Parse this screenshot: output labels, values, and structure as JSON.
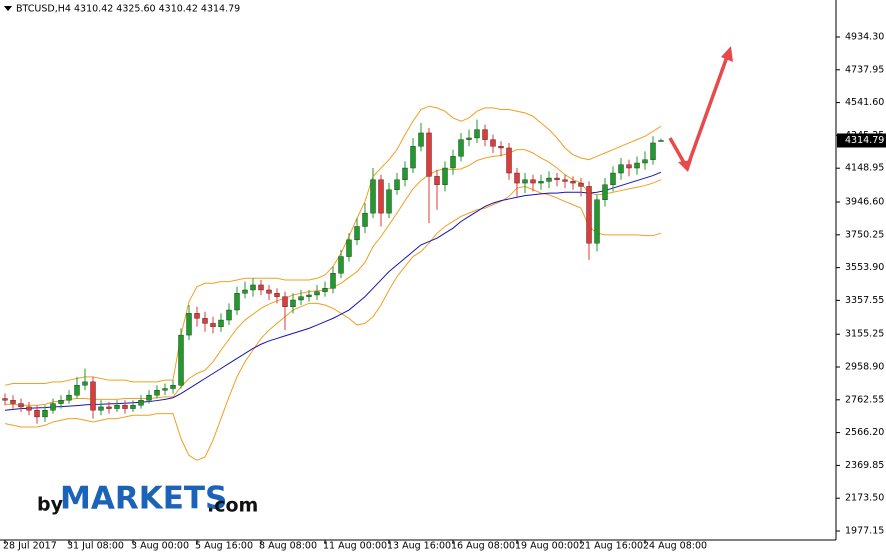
{
  "chart_data": {
    "type": "candlestick",
    "title": "BTCUSD,H4",
    "subtitle": "4310.42 4325.60 4310.42 4314.79",
    "last_price": 4314.79,
    "up_color": "#1f9b2b",
    "down_color": "#e03a3a",
    "ylim": [
      1923.3,
      5155.8
    ],
    "yticks": [
      {
        "value": 4934.3,
        "label": "4934.30"
      },
      4737.95,
      {
        "value": 4541.6,
        "label": "4541.60"
      },
      4345.25,
      4148.95,
      {
        "value": 3946.6,
        "label": "3946.60"
      },
      3750.25,
      {
        "value": 3553.9,
        "label": "3553.90"
      },
      3357.55,
      3155.25,
      {
        "value": 2958.9,
        "label": "2958.90"
      },
      2762.55,
      {
        "value": 2566.2,
        "label": "2566.20"
      },
      2369.85,
      {
        "value": 2173.5,
        "label": "2173.50"
      },
      1977.15
    ],
    "categories": [
      "28 Jul 2017",
      null,
      null,
      null,
      null,
      null,
      null,
      null,
      "31 Jul 08:00",
      null,
      null,
      null,
      null,
      null,
      null,
      null,
      "3 Aug 00:00",
      null,
      null,
      null,
      null,
      null,
      null,
      null,
      "5 Aug 16:00",
      null,
      null,
      null,
      null,
      null,
      null,
      null,
      "8 Aug 08:00",
      null,
      null,
      null,
      null,
      null,
      null,
      null,
      "11 Aug 00:00",
      null,
      null,
      null,
      null,
      null,
      null,
      null,
      "13 Aug 16:00",
      null,
      null,
      null,
      null,
      null,
      null,
      null,
      "16 Aug 08:00",
      null,
      null,
      null,
      null,
      null,
      null,
      null,
      "19 Aug 00:00",
      null,
      null,
      null,
      null,
      null,
      null,
      null,
      "21 Aug 16:00",
      null,
      null,
      null,
      null,
      null,
      null,
      null,
      "24 Aug 08:00",
      null,
      null
    ],
    "open": [
      2770,
      2760,
      2740,
      2720,
      2700,
      2660,
      2700,
      2740,
      2760,
      2790,
      2850,
      2870,
      2700,
      2720,
      2710,
      2730,
      2710,
      2730,
      2760,
      2790,
      2820,
      2830,
      2850,
      3150,
      3280,
      3250,
      3220,
      3200,
      3240,
      3300,
      3400,
      3420,
      3450,
      3420,
      3400,
      3380,
      3320,
      3360,
      3380,
      3390,
      3410,
      3430,
      3520,
      3620,
      3720,
      3800,
      3880,
      4080,
      3880,
      4020,
      4080,
      4150,
      4280,
      4360,
      4100,
      4050,
      4150,
      4220,
      4320,
      4330,
      4380,
      4320,
      4280,
      4270,
      4120,
      4060,
      4080,
      4060,
      4070,
      4090,
      4080,
      4070,
      4060,
      4040,
      3700,
      3960,
      4050,
      4120,
      4170,
      4150,
      4180,
      4200,
      4310.42
    ],
    "high": [
      2800,
      2790,
      2770,
      2750,
      2730,
      2730,
      2770,
      2790,
      2820,
      2900,
      2950,
      2900,
      2760,
      2750,
      2760,
      2760,
      2760,
      2790,
      2820,
      2850,
      2860,
      2880,
      3190,
      3330,
      3320,
      3290,
      3260,
      3280,
      3340,
      3440,
      3470,
      3490,
      3480,
      3450,
      3430,
      3410,
      3400,
      3420,
      3420,
      3450,
      3470,
      3560,
      3660,
      3760,
      3850,
      3940,
      4150,
      4110,
      4060,
      4120,
      4190,
      4330,
      4420,
      4390,
      4140,
      4190,
      4260,
      4360,
      4380,
      4440,
      4410,
      4350,
      4310,
      4300,
      4150,
      4120,
      4110,
      4110,
      4130,
      4120,
      4110,
      4100,
      4090,
      4070,
      3990,
      4090,
      4160,
      4210,
      4200,
      4220,
      4250,
      4340,
      4325.6
    ],
    "low": [
      2730,
      2710,
      2690,
      2670,
      2620,
      2630,
      2680,
      2710,
      2740,
      2770,
      2820,
      2650,
      2670,
      2680,
      2690,
      2680,
      2690,
      2710,
      2740,
      2770,
      2790,
      2800,
      2830,
      3120,
      3200,
      3170,
      3160,
      3170,
      3210,
      3270,
      3370,
      3380,
      3390,
      3360,
      3340,
      3180,
      3280,
      3330,
      3350,
      3360,
      3380,
      3400,
      3490,
      3590,
      3690,
      3760,
      3850,
      3800,
      3850,
      3990,
      4040,
      4120,
      4250,
      3820,
      3900,
      4010,
      4110,
      4190,
      4280,
      4300,
      4280,
      4240,
      4220,
      4080,
      3980,
      4000,
      4010,
      4020,
      4030,
      4040,
      4030,
      4020,
      3980,
      3600,
      3650,
      3920,
      4010,
      4080,
      4100,
      4110,
      4140,
      4170,
      4310.42
    ],
    "close": [
      2760,
      2740,
      2720,
      2700,
      2660,
      2700,
      2740,
      2760,
      2790,
      2850,
      2870,
      2700,
      2720,
      2710,
      2730,
      2710,
      2730,
      2760,
      2790,
      2820,
      2830,
      2850,
      3150,
      3280,
      3250,
      3220,
      3200,
      3240,
      3300,
      3400,
      3420,
      3450,
      3420,
      3400,
      3380,
      3320,
      3360,
      3380,
      3390,
      3410,
      3430,
      3520,
      3620,
      3720,
      3800,
      3880,
      4080,
      3880,
      4020,
      4080,
      4150,
      4280,
      4360,
      4100,
      4050,
      4150,
      4220,
      4320,
      4330,
      4380,
      4320,
      4280,
      4270,
      4120,
      4060,
      4080,
      4060,
      4070,
      4090,
      4080,
      4070,
      4060,
      4040,
      3700,
      3960,
      4050,
      4120,
      4170,
      4150,
      4180,
      4200,
      4300,
      4314.79
    ],
    "overlays": [
      {
        "color": "#f0a020",
        "values": [
          2850,
          2860,
          2860,
          2860,
          2860,
          2860,
          2870,
          2870,
          2880,
          2890,
          2900,
          2900,
          2890,
          2880,
          2880,
          2880,
          2870,
          2870,
          2870,
          2870,
          2880,
          2880,
          3150,
          3350,
          3440,
          3460,
          3460,
          3470,
          3470,
          3480,
          3490,
          3490,
          3490,
          3490,
          3490,
          3480,
          3480,
          3480,
          3480,
          3490,
          3510,
          3560,
          3640,
          3740,
          3850,
          3950,
          4100,
          4150,
          4200,
          4260,
          4350,
          4430,
          4500,
          4520,
          4510,
          4490,
          4450,
          4430,
          4450,
          4490,
          4510,
          4510,
          4500,
          4500,
          4490,
          4480,
          4460,
          4420,
          4380,
          4330,
          4270,
          4230,
          4210,
          4200,
          4220,
          4240,
          4260,
          4280,
          4300,
          4320,
          4340,
          4370,
          4400
        ]
      },
      {
        "color": "#f0a020",
        "values": [
          2735,
          2735,
          2730,
          2730,
          2730,
          2735,
          2750,
          2755,
          2765,
          2770,
          2770,
          2765,
          2765,
          2765,
          2765,
          2770,
          2770,
          2770,
          2770,
          2775,
          2780,
          2780,
          2840,
          2890,
          2920,
          2940,
          2990,
          3060,
          3125,
          3190,
          3240,
          3275,
          3310,
          3335,
          3355,
          3370,
          3390,
          3400,
          3410,
          3415,
          3420,
          3435,
          3460,
          3495,
          3530,
          3585,
          3680,
          3740,
          3810,
          3880,
          3955,
          4025,
          4075,
          4110,
          4135,
          4145,
          4140,
          4145,
          4165,
          4195,
          4210,
          4220,
          4225,
          4240,
          4260,
          4260,
          4240,
          4210,
          4185,
          4150,
          4110,
          4080,
          4060,
          4000,
          3990,
          3995,
          4005,
          4015,
          4025,
          4035,
          4045,
          4060,
          4080
        ]
      },
      {
        "color": "#f0a020",
        "values": [
          2620,
          2610,
          2600,
          2600,
          2600,
          2610,
          2630,
          2640,
          2650,
          2650,
          2640,
          2630,
          2640,
          2650,
          2650,
          2660,
          2670,
          2670,
          2670,
          2680,
          2680,
          2680,
          2530,
          2430,
          2400,
          2420,
          2520,
          2650,
          2780,
          2900,
          2990,
          3060,
          3130,
          3180,
          3220,
          3260,
          3300,
          3320,
          3340,
          3340,
          3330,
          3310,
          3280,
          3250,
          3210,
          3220,
          3260,
          3330,
          3420,
          3500,
          3560,
          3620,
          3650,
          3700,
          3760,
          3800,
          3830,
          3860,
          3880,
          3900,
          3910,
          3930,
          3950,
          3980,
          4030,
          4040,
          4020,
          4000,
          3990,
          3970,
          3950,
          3930,
          3910,
          3800,
          3760,
          3750,
          3750,
          3750,
          3750,
          3750,
          3745,
          3745,
          3760
        ]
      },
      {
        "color": "#1414b4",
        "values": [
          2700,
          2705,
          2710,
          2712,
          2714,
          2716,
          2720,
          2722,
          2725,
          2728,
          2732,
          2735,
          2736,
          2738,
          2740,
          2742,
          2745,
          2748,
          2752,
          2758,
          2765,
          2775,
          2800,
          2830,
          2860,
          2890,
          2920,
          2950,
          2980,
          3010,
          3040,
          3070,
          3095,
          3115,
          3130,
          3145,
          3160,
          3175,
          3190,
          3210,
          3230,
          3250,
          3275,
          3300,
          3340,
          3380,
          3430,
          3480,
          3530,
          3570,
          3610,
          3650,
          3690,
          3710,
          3730,
          3760,
          3790,
          3830,
          3860,
          3890,
          3920,
          3940,
          3955,
          3965,
          3975,
          3985,
          3990,
          3995,
          4000,
          4000,
          4005,
          4005,
          4005,
          4000,
          4005,
          4015,
          4030,
          4045,
          4060,
          4075,
          4090,
          4105,
          4125
        ]
      }
    ],
    "watermark": {
      "prefix": "by",
      "brand": "MARKETS",
      "suffix": ".com"
    }
  }
}
